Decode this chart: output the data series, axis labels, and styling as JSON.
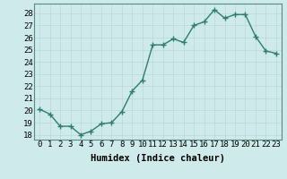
{
  "x": [
    0,
    1,
    2,
    3,
    4,
    5,
    6,
    7,
    8,
    9,
    10,
    11,
    12,
    13,
    14,
    15,
    16,
    17,
    18,
    19,
    20,
    21,
    22,
    23
  ],
  "y": [
    20.1,
    19.7,
    18.7,
    18.7,
    18.0,
    18.3,
    18.9,
    19.0,
    19.9,
    21.6,
    22.5,
    25.4,
    25.4,
    25.9,
    25.6,
    27.0,
    27.3,
    28.3,
    27.6,
    27.9,
    27.9,
    26.1,
    24.9,
    24.7
  ],
  "line_color": "#2e7d6e",
  "marker": "+",
  "marker_size": 4,
  "bg_color": "#ceeaea",
  "grid_color": "#b8d8d6",
  "xlabel": "Humidex (Indice chaleur)",
  "ylabel_ticks": [
    18,
    19,
    20,
    21,
    22,
    23,
    24,
    25,
    26,
    27,
    28
  ],
  "ylim": [
    17.6,
    28.8
  ],
  "xlim": [
    -0.5,
    23.5
  ],
  "xtick_labels": [
    "0",
    "1",
    "2",
    "3",
    "4",
    "5",
    "6",
    "7",
    "8",
    "9",
    "10",
    "11",
    "12",
    "13",
    "14",
    "15",
    "16",
    "17",
    "18",
    "19",
    "20",
    "21",
    "22",
    "23"
  ],
  "line_width": 1.0,
  "font_size": 6.5,
  "xlabel_fontsize": 7.5
}
